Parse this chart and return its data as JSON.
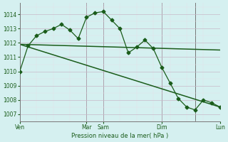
{
  "bg_color": "#d5f0f0",
  "plot_bg_color": "#d5f0f0",
  "grid_color_major": "#c8b8c8",
  "grid_color_minor": "#e8e0e8",
  "line_color": "#1a5c1a",
  "ylabel_text": "Pression niveau de la mer( hPa )",
  "ylim": [
    1006.5,
    1014.8
  ],
  "yticks": [
    1007,
    1008,
    1009,
    1010,
    1011,
    1012,
    1013,
    1014
  ],
  "x_tick_labels": [
    "Ven",
    "Mar",
    "Sam",
    "Dim",
    "Lun"
  ],
  "x_tick_positions": [
    0,
    8,
    10,
    17,
    24
  ],
  "xlim": [
    0,
    24
  ],
  "series1_x": [
    0,
    1,
    2,
    3,
    4,
    5,
    6,
    7,
    8,
    9,
    10,
    11,
    12,
    13,
    14,
    15,
    16,
    17,
    18,
    19,
    20,
    21,
    22,
    23,
    24
  ],
  "series1_y": [
    1010.0,
    1011.8,
    1012.5,
    1012.8,
    1013.0,
    1013.3,
    1012.9,
    1012.3,
    1013.8,
    1014.1,
    1014.2,
    1013.6,
    1013.0,
    1011.3,
    1011.7,
    1012.2,
    1011.6,
    1010.3,
    1009.2,
    1008.1,
    1007.5,
    1007.3,
    1008.0,
    1007.8,
    1007.5
  ],
  "series2_x": [
    0,
    24
  ],
  "series2_y": [
    1011.9,
    1011.5
  ],
  "series3_x": [
    0,
    24
  ],
  "series3_y": [
    1011.9,
    1007.5
  ],
  "vlines_x": [
    0,
    8,
    10,
    17,
    21
  ],
  "vline_color": "#777777",
  "border_color": "#777777"
}
